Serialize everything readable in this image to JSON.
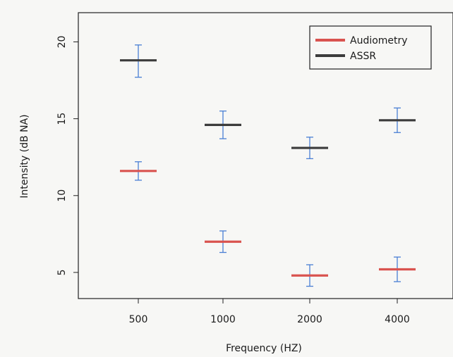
{
  "chart_data": {
    "type": "scatter",
    "title": "",
    "xlabel": "Frequency (HZ)",
    "ylabel": "Intensity (dB NA)",
    "categories": [
      "500",
      "1000",
      "2000",
      "4000"
    ],
    "yticks": [
      "5",
      "10",
      "15",
      "20"
    ],
    "ylim": [
      3.3,
      21.9
    ],
    "grid": false,
    "legend": {
      "placement": "top-right",
      "entries": [
        "Audiometry",
        "ASSR"
      ]
    },
    "series": [
      {
        "name": "Audiometry",
        "color": "#d9534f",
        "values": [
          11.6,
          7.0,
          4.8,
          5.2
        ],
        "err_low": [
          11.0,
          6.3,
          4.1,
          4.4
        ],
        "err_high": [
          12.2,
          7.7,
          5.5,
          6.0
        ]
      },
      {
        "name": "ASSR",
        "color": "#3c3c3c",
        "values": [
          18.8,
          14.6,
          13.1,
          14.9
        ],
        "err_low": [
          17.7,
          13.7,
          12.4,
          14.1
        ],
        "err_high": [
          19.8,
          15.5,
          13.8,
          15.7
        ]
      }
    ],
    "errorbar_color": "#4a7fd4"
  }
}
